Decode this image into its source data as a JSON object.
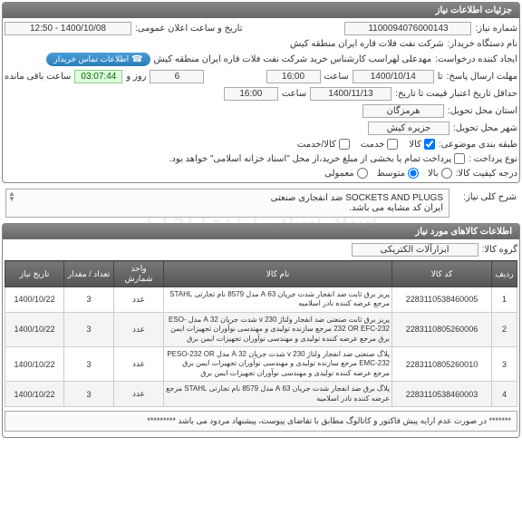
{
  "panel1_title": "جزئیات اطلاعات نیاز",
  "labels": {
    "need_no": "شماره نیاز:",
    "public_datetime": "تاریخ و ساعت اعلان عمومی:",
    "buyer_org": "نام دستگاه خریدار:",
    "requester": "ایجاد کننده درخواست:",
    "contact_btn": "اطلاعات تماس خریدار",
    "reply_deadline": "مهلت ارسال پاسخ:",
    "until": "تا",
    "hour": "ساعت",
    "day_and": "روز و",
    "remaining": "ساعت باقی مانده",
    "validity_min": "حداقل تاریخ اعتبار قیمت تا تاریخ:",
    "province": "استان محل تحویل:",
    "city": "شهر محل تحویل:",
    "classification": "طبقه بندی موضوعی:",
    "goods": "کالا",
    "service": "خدمت",
    "goods_service": "کالا/خدمت",
    "payment_type": "نوع پرداخت :",
    "payment_note": "پرداخت تمام یا بخشی از مبلغ خرید،از محل \"اسناد خزانه اسلامی\" خواهد بود.",
    "priority": "درجه کیفیت کالا:",
    "p_high": "بالا",
    "p_med": "متوسط",
    "p_low": "معمولی"
  },
  "values": {
    "need_no": "1100094076000143",
    "public_datetime": "1400/10/08 - 12:50",
    "buyer_org": "شرکت نفت فلات قاره ایران منطقه کیش",
    "requester": "مهدعلی لهراسب کارشناس خرید شرکت نفت فلات قاره ایران منطقه کیش",
    "reply_date": "1400/10/14",
    "reply_hour": "16:00",
    "days_left": "6",
    "countdown": "03:07:44",
    "validity_date": "1400/11/13",
    "validity_hour": "16:00",
    "province": "هرمزگان",
    "city": "جزیره کیش"
  },
  "desc_label": "شرح کلی نیاز:",
  "desc_text": "SOCKETS AND PLUGS ضد انفجاری صنعتی\nایران کد مشابه می باشد.",
  "panel2_title": "اطلاعات کالاهای مورد نیاز",
  "group_label": "گروه کالا:",
  "group_value": "ابزارآلات الکتریکی",
  "columns": [
    "ردیف",
    "کد کالا",
    "نام کالا",
    "واحد شمارش",
    "تعداد / مقدار",
    "تاریخ نیاز"
  ],
  "rows": [
    {
      "idx": "1",
      "code": "2283110538460005",
      "name": "پریز برق ثابت ضد انفجار شدت جریان 63 A مدل 8579 نام تجارتی STAHL مرجع عرضه کننده نادر اسلامیه",
      "unit": "عدد",
      "qty": "3",
      "date": "1400/10/22"
    },
    {
      "idx": "2",
      "code": "2283110805260006",
      "name": "پریز برق ثابت صنعتی ضد انفجار ولتاژ 230 v شدت جریان 32 A مدل ESO-232 OR EFC-232 مرجع سازنده تولیدی و مهندسی نوآوران تجهیزات ایمن برق مرجع عرضه کننده تولیدی و مهندسی نوآوران تجهیزات ایمن برق",
      "unit": "عدد",
      "qty": "3",
      "date": "1400/10/22"
    },
    {
      "idx": "3",
      "code": "2283110805260010",
      "name": "پلاگ صنعتی ضد انفجار ولتاژ 230 v شدت جریان 32 A مدل PESO-232 OR EMC-232 مرجع سازنده تولیدی و مهندسی نوآوران تجهیزات ایمن برق مرجع عرضه کننده تولیدی و مهندسی نوآوران تجهیزات ایمن برق",
      "unit": "عدد",
      "qty": "3",
      "date": "1400/10/22"
    },
    {
      "idx": "4",
      "code": "2283110538460003",
      "name": "پلاگ برق ضد انفجار شدت جریان 63 A مدل 8579 نام تجارتی STAHL مرجع عرضه کننده نادر اسلامیه",
      "unit": "عدد",
      "qty": "3",
      "date": "1400/10/22"
    }
  ],
  "note": "******* در صورت عدم ارایه پیش فاکتور و کاتالوگ مطابق با تقاضای پیوست، پیشنهاد مردود می باشد *********",
  "watermark": "ستاد ایران ۰۲۱-۴۱۹۳۴"
}
